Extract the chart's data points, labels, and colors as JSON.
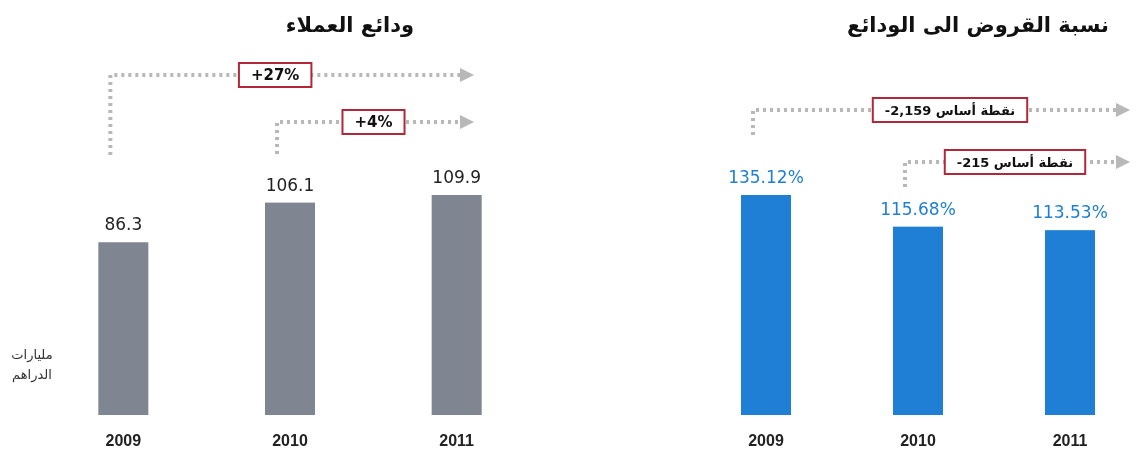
{
  "chart_data": [
    {
      "type": "bar",
      "title": "ودائع العملاء",
      "ylabel": "مليارات الدراهم",
      "categories": [
        "2009",
        "2010",
        "2011"
      ],
      "values": [
        86.3,
        106.1,
        109.9
      ],
      "color": "#7f8591",
      "data_labels": true,
      "annotations": [
        "+27%",
        "+4%"
      ]
    },
    {
      "type": "bar",
      "title": "نسبة القروض الى الودائع",
      "categories": [
        "2009",
        "2010",
        "2011"
      ],
      "values": [
        135.12,
        115.68,
        113.53
      ],
      "value_labels": [
        "135.12%",
        "115.68%",
        "113.53%"
      ],
      "color": "#1f7fd4",
      "annotations": [
        "-2,159 نقطة أساس",
        "-215 نقطة أساس"
      ]
    }
  ]
}
